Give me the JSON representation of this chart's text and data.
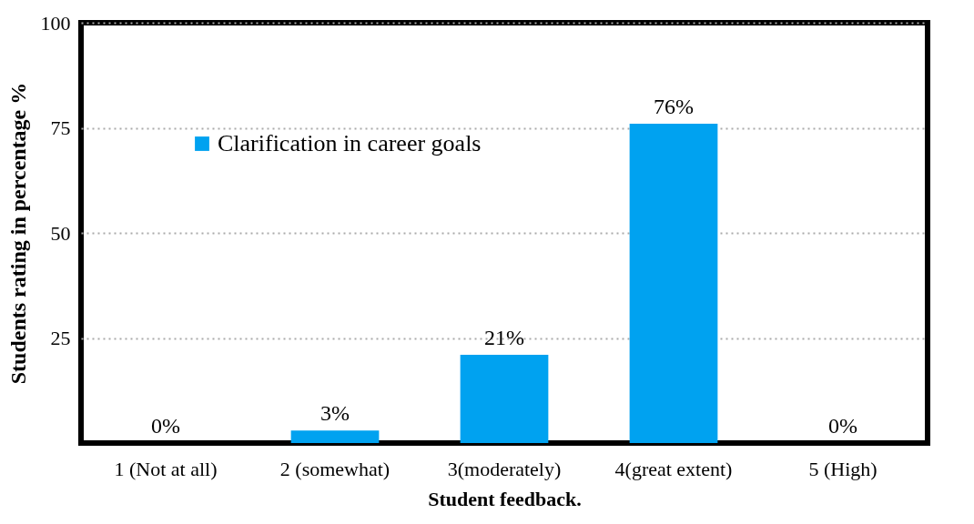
{
  "chart_data": {
    "type": "bar",
    "xlabel": "Student feedback.",
    "ylabel": "Students  rating in percentage %",
    "categories": [
      "1 (Not at all)",
      "2 (somewhat)",
      "3(moderately)",
      "4(great extent)",
      "5 (High)"
    ],
    "series": [
      {
        "name": "Clarification in career goals",
        "color": "#00a2f0",
        "values": [
          0,
          3,
          21,
          76,
          0
        ],
        "value_labels": [
          "0%",
          "3%",
          "21%",
          "76%",
          "0%"
        ]
      }
    ],
    "ylim": [
      0,
      100
    ],
    "yticks": [
      25,
      50,
      75,
      100
    ],
    "grid": "y",
    "legend": "top left"
  }
}
